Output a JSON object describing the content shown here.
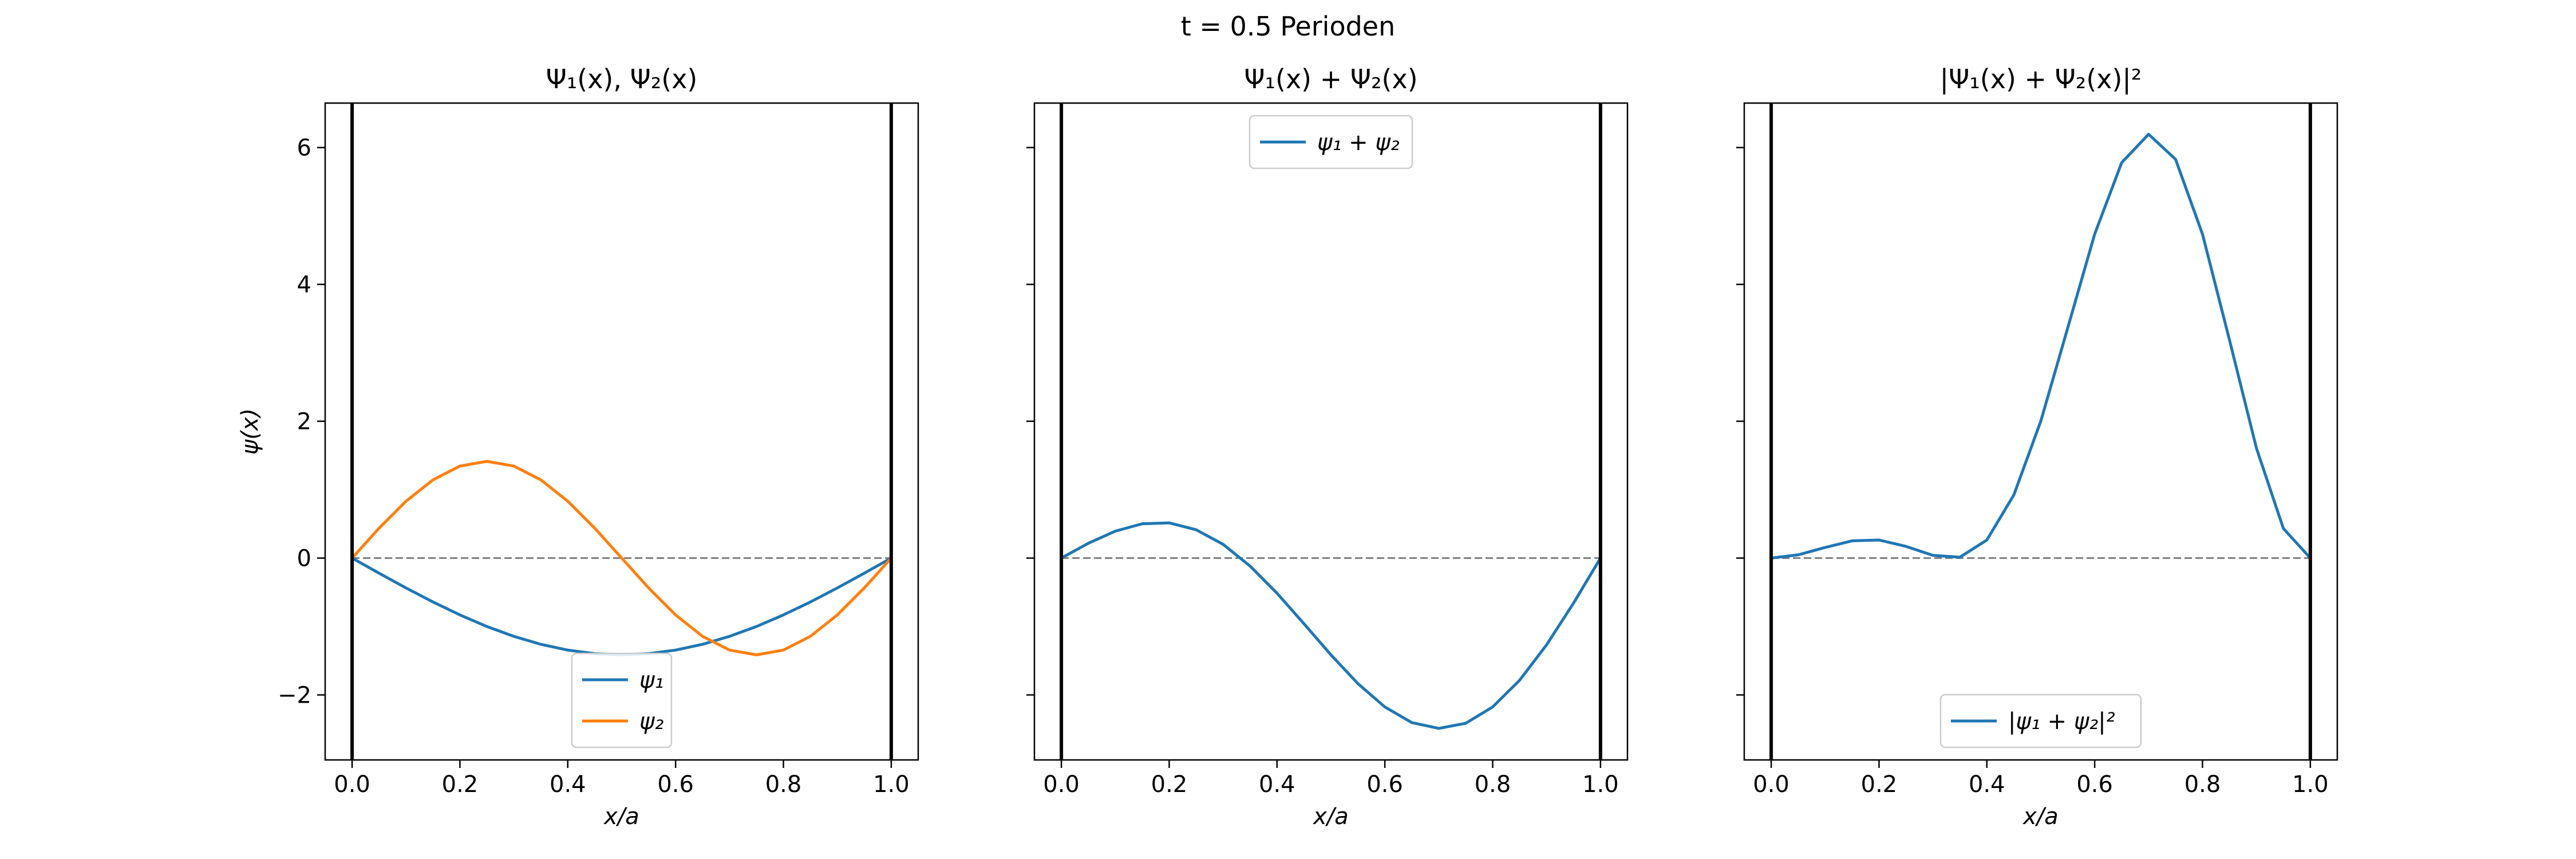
{
  "figure": {
    "suptitle": "t = 0.5 Perioden"
  },
  "chart_data": [
    {
      "type": "line",
      "title": "Ψ₁(x), Ψ₂(x)",
      "xlabel": "x/a",
      "ylabel": "ψ(x)",
      "xlim": [
        -0.05,
        1.05
      ],
      "ylim": [
        -2.95,
        6.65
      ],
      "xticks": [
        0.0,
        0.2,
        0.4,
        0.6,
        0.8,
        1.0
      ],
      "xtick_labels": [
        "0.0",
        "0.2",
        "0.4",
        "0.6",
        "0.8",
        "1.0"
      ],
      "yticks": [
        -2,
        0,
        2,
        4,
        6
      ],
      "ytick_labels": [
        "−2",
        "0",
        "2",
        "4",
        "6"
      ],
      "show_ytick_labels": true,
      "walls": [
        0.0,
        1.0
      ],
      "zero_line": true,
      "legend_position": "lower-center",
      "x": [
        0.0,
        0.05,
        0.1,
        0.15,
        0.2,
        0.25,
        0.3,
        0.35,
        0.4,
        0.45,
        0.5,
        0.55,
        0.6,
        0.65,
        0.7,
        0.75,
        0.8,
        0.85,
        0.9,
        0.95,
        1.0
      ],
      "series": [
        {
          "name": "ψ₁",
          "color": "#1f77b4",
          "values": [
            0.0,
            -0.221,
            -0.437,
            -0.642,
            -0.831,
            -1.0,
            -1.144,
            -1.26,
            -1.345,
            -1.397,
            -1.414,
            -1.397,
            -1.345,
            -1.26,
            -1.144,
            -1.0,
            -0.831,
            -0.642,
            -0.437,
            -0.221,
            0.0
          ]
        },
        {
          "name": "ψ₂",
          "color": "#ff7f0e",
          "values": [
            0.0,
            0.437,
            0.831,
            1.144,
            1.345,
            1.414,
            1.345,
            1.144,
            0.831,
            0.437,
            0.0,
            -0.437,
            -0.831,
            -1.144,
            -1.345,
            -1.414,
            -1.345,
            -1.144,
            -0.831,
            -0.437,
            0.0
          ]
        }
      ]
    },
    {
      "type": "line",
      "title": "Ψ₁(x) + Ψ₂(x)",
      "xlabel": "x/a",
      "ylabel": "",
      "xlim": [
        -0.05,
        1.05
      ],
      "ylim": [
        -2.95,
        6.65
      ],
      "xticks": [
        0.0,
        0.2,
        0.4,
        0.6,
        0.8,
        1.0
      ],
      "xtick_labels": [
        "0.0",
        "0.2",
        "0.4",
        "0.6",
        "0.8",
        "1.0"
      ],
      "yticks": [
        -2,
        0,
        2,
        4,
        6
      ],
      "show_ytick_labels": false,
      "walls": [
        0.0,
        1.0
      ],
      "zero_line": true,
      "legend_position": "upper-center",
      "x": [
        0.0,
        0.05,
        0.1,
        0.15,
        0.2,
        0.25,
        0.3,
        0.35,
        0.4,
        0.45,
        0.5,
        0.55,
        0.6,
        0.65,
        0.7,
        0.75,
        0.8,
        0.85,
        0.9,
        0.95,
        1.0
      ],
      "series": [
        {
          "name": "ψ₁ + ψ₂",
          "color": "#1f77b4",
          "values": [
            0.0,
            0.216,
            0.394,
            0.502,
            0.514,
            0.414,
            0.201,
            -0.116,
            -0.514,
            -0.96,
            -1.414,
            -1.834,
            -2.176,
            -2.404,
            -2.489,
            -2.414,
            -2.176,
            -1.786,
            -1.268,
            -0.658,
            0.0
          ]
        }
      ]
    },
    {
      "type": "line",
      "title": "|Ψ₁(x) + Ψ₂(x)|²",
      "xlabel": "x/a",
      "ylabel": "",
      "xlim": [
        -0.05,
        1.05
      ],
      "ylim": [
        -2.95,
        6.65
      ],
      "xticks": [
        0.0,
        0.2,
        0.4,
        0.6,
        0.8,
        1.0
      ],
      "xtick_labels": [
        "0.0",
        "0.2",
        "0.4",
        "0.6",
        "0.8",
        "1.0"
      ],
      "yticks": [
        -2,
        0,
        2,
        4,
        6
      ],
      "show_ytick_labels": false,
      "walls": [
        0.0,
        1.0
      ],
      "zero_line": true,
      "legend_position": "lower-center",
      "x": [
        0.0,
        0.05,
        0.1,
        0.15,
        0.2,
        0.25,
        0.3,
        0.35,
        0.4,
        0.45,
        0.5,
        0.55,
        0.6,
        0.65,
        0.7,
        0.75,
        0.8,
        0.85,
        0.9,
        0.95,
        1.0
      ],
      "series": [
        {
          "name": "|ψ₁ + ψ₂|²",
          "color": "#1f77b4",
          "values": [
            0.0,
            0.047,
            0.155,
            0.252,
            0.264,
            0.171,
            0.04,
            0.013,
            0.264,
            0.922,
            2.0,
            3.364,
            4.735,
            5.779,
            6.195,
            5.828,
            4.735,
            3.19,
            1.608,
            0.433,
            0.0
          ]
        }
      ]
    }
  ]
}
